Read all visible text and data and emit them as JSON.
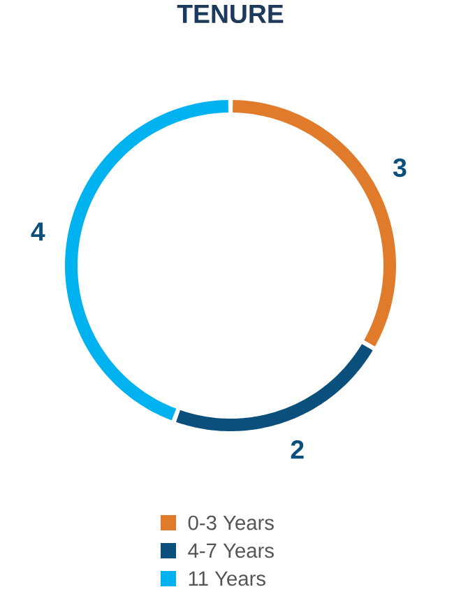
{
  "chart_data": {
    "type": "donut",
    "title": "TENURE",
    "categories": [
      "0-3 Years",
      "4-7 Years",
      "11 Years"
    ],
    "values": [
      3,
      2,
      4
    ],
    "colors": [
      "#e07b2c",
      "#0b4f7c",
      "#00b2f0"
    ],
    "data_labels": true,
    "legend": "bottom"
  }
}
